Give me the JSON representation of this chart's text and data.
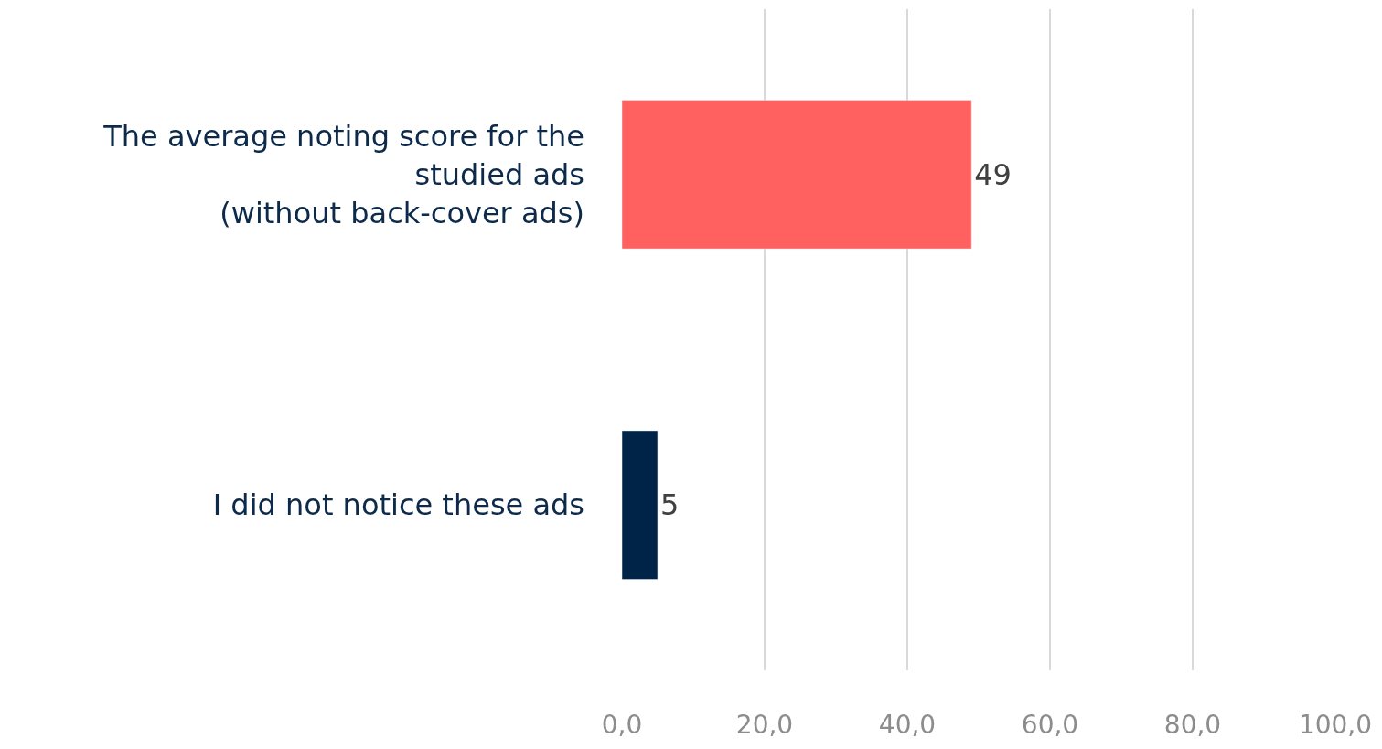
{
  "chart_data": {
    "type": "bar",
    "orientation": "horizontal",
    "categories": [
      "The average noting score for the\nstudied ads\n(without back-cover ads)",
      "I did not notice these ads"
    ],
    "values": [
      49,
      5
    ],
    "colors": [
      "#ff6161",
      "#002447"
    ],
    "xlim": [
      0,
      100
    ],
    "xticks": [
      {
        "value": 0,
        "label": "0,0"
      },
      {
        "value": 20,
        "label": "20,0"
      },
      {
        "value": 40,
        "label": "40,0"
      },
      {
        "value": 60,
        "label": "60,0"
      },
      {
        "value": 80,
        "label": "80,0"
      },
      {
        "value": 100,
        "label": "100,0"
      }
    ],
    "grid": "x",
    "data_labels": true,
    "legend": false
  }
}
